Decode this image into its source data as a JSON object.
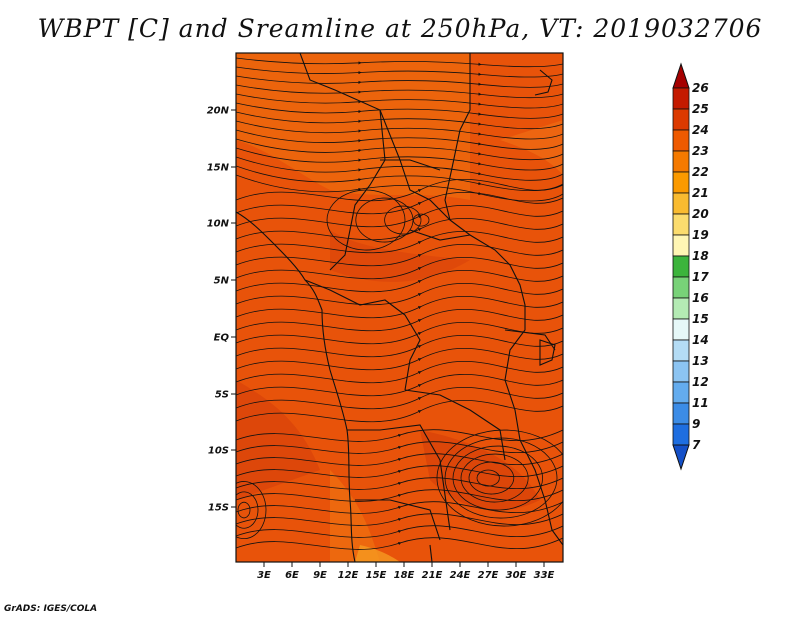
{
  "title": "WBPT [C] and Sreamline at 250hPa, VT: 2019032706",
  "credit": "GrADS: IGES/COLA",
  "map": {
    "lat_labels": [
      "20N",
      "15N",
      "10N",
      "5N",
      "EQ",
      "5S",
      "10S",
      "15S"
    ],
    "lon_labels": [
      "3E",
      "6E",
      "9E",
      "12E",
      "15E",
      "18E",
      "21E",
      "24E",
      "27E",
      "30E",
      "33E"
    ]
  },
  "colorbar": {
    "labels": [
      "26",
      "25",
      "24",
      "23",
      "22",
      "21",
      "20",
      "19",
      "18",
      "17",
      "16",
      "15",
      "14",
      "13",
      "12",
      "11",
      "9",
      "7"
    ],
    "colors": [
      "#a50000",
      "#c41a00",
      "#dc3a00",
      "#ee5a00",
      "#f57a00",
      "#fb9a00",
      "#f9bb30",
      "#fbdc6e",
      "#fff6b4",
      "#3cb43c",
      "#78d278",
      "#b4ebb4",
      "#e6f8f8",
      "#b4dcf5",
      "#8cc4f2",
      "#64acee",
      "#3c8ce6",
      "#1e6ee0",
      "#1450c8"
    ]
  }
}
